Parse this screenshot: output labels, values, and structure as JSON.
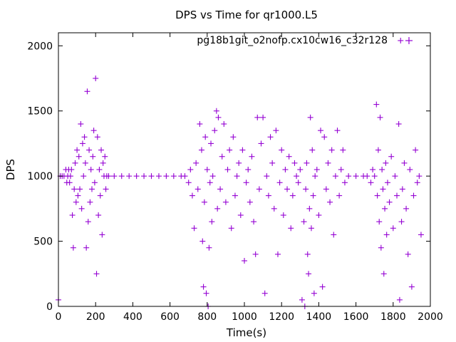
{
  "chart_data": {
    "type": "scatter",
    "title": "DPS vs Time for qr1000.L5",
    "xlabel": "Time(s)",
    "ylabel": "DPS",
    "xlim": [
      0,
      2000
    ],
    "ylim": [
      0,
      2100
    ],
    "xticks": [
      0,
      200,
      400,
      600,
      800,
      1000,
      1200,
      1400,
      1600,
      1800,
      2000
    ],
    "yticks": [
      0,
      500,
      1000,
      1500,
      2000
    ],
    "xtick_labels": [
      "0",
      "200",
      "400",
      "600",
      "800",
      "1000",
      "1200",
      "1400",
      "1600",
      "1800",
      "2000"
    ],
    "ytick_labels": [
      "0",
      "500",
      "1000",
      "1500",
      "2000"
    ],
    "grid": false,
    "legend_position": "top-right",
    "series": [
      {
        "name": "pg18b1git_o2nofp.cx10cw16_c32r128",
        "color": "#9400d3",
        "marker": "plus",
        "points": [
          [
            0,
            50
          ],
          [
            10,
            1000
          ],
          [
            20,
            1000
          ],
          [
            30,
            1000
          ],
          [
            40,
            1050
          ],
          [
            45,
            950
          ],
          [
            50,
            1000
          ],
          [
            55,
            1050
          ],
          [
            60,
            950
          ],
          [
            65,
            1000
          ],
          [
            70,
            1050
          ],
          [
            75,
            700
          ],
          [
            80,
            450
          ],
          [
            85,
            900
          ],
          [
            90,
            1100
          ],
          [
            95,
            800
          ],
          [
            100,
            1200
          ],
          [
            105,
            850
          ],
          [
            110,
            1150
          ],
          [
            115,
            900
          ],
          [
            120,
            1400
          ],
          [
            125,
            750
          ],
          [
            130,
            1250
          ],
          [
            135,
            1000
          ],
          [
            140,
            1300
          ],
          [
            145,
            1100
          ],
          [
            150,
            450
          ],
          [
            155,
            1650
          ],
          [
            160,
            650
          ],
          [
            165,
            1200
          ],
          [
            170,
            800
          ],
          [
            175,
            1050
          ],
          [
            180,
            900
          ],
          [
            185,
            1150
          ],
          [
            190,
            1350
          ],
          [
            195,
            950
          ],
          [
            200,
            1750
          ],
          [
            205,
            250
          ],
          [
            210,
            1300
          ],
          [
            215,
            700
          ],
          [
            220,
            1050
          ],
          [
            225,
            850
          ],
          [
            230,
            1200
          ],
          [
            235,
            550
          ],
          [
            240,
            1100
          ],
          [
            245,
            1000
          ],
          [
            250,
            1150
          ],
          [
            255,
            900
          ],
          [
            260,
            1000
          ],
          [
            270,
            1000
          ],
          [
            300,
            1000
          ],
          [
            340,
            1000
          ],
          [
            380,
            1000
          ],
          [
            420,
            1000
          ],
          [
            460,
            1000
          ],
          [
            500,
            1000
          ],
          [
            540,
            1000
          ],
          [
            580,
            1000
          ],
          [
            620,
            1000
          ],
          [
            660,
            1000
          ],
          [
            680,
            1000
          ],
          [
            700,
            950
          ],
          [
            710,
            1050
          ],
          [
            720,
            850
          ],
          [
            730,
            600
          ],
          [
            740,
            1100
          ],
          [
            750,
            900
          ],
          [
            760,
            1400
          ],
          [
            770,
            1200
          ],
          [
            775,
            500
          ],
          [
            780,
            150
          ],
          [
            785,
            800
          ],
          [
            790,
            1300
          ],
          [
            795,
            100
          ],
          [
            800,
            1050
          ],
          [
            805,
            0
          ],
          [
            810,
            450
          ],
          [
            815,
            950
          ],
          [
            820,
            1250
          ],
          [
            825,
            650
          ],
          [
            830,
            1000
          ],
          [
            840,
            1350
          ],
          [
            850,
            1500
          ],
          [
            855,
            750
          ],
          [
            860,
            1450
          ],
          [
            870,
            900
          ],
          [
            880,
            1150
          ],
          [
            890,
            1400
          ],
          [
            900,
            800
          ],
          [
            910,
            1050
          ],
          [
            920,
            1200
          ],
          [
            930,
            600
          ],
          [
            940,
            1300
          ],
          [
            950,
            850
          ],
          [
            960,
            1000
          ],
          [
            970,
            1100
          ],
          [
            980,
            700
          ],
          [
            990,
            1200
          ],
          [
            1000,
            350
          ],
          [
            1010,
            950
          ],
          [
            1020,
            1050
          ],
          [
            1030,
            800
          ],
          [
            1040,
            1150
          ],
          [
            1050,
            650
          ],
          [
            1060,
            400
          ],
          [
            1070,
            1450
          ],
          [
            1080,
            900
          ],
          [
            1090,
            1250
          ],
          [
            1100,
            1450
          ],
          [
            1110,
            100
          ],
          [
            1120,
            1000
          ],
          [
            1130,
            850
          ],
          [
            1140,
            1300
          ],
          [
            1150,
            1100
          ],
          [
            1160,
            750
          ],
          [
            1170,
            1350
          ],
          [
            1180,
            400
          ],
          [
            1190,
            950
          ],
          [
            1200,
            1200
          ],
          [
            1210,
            700
          ],
          [
            1220,
            1050
          ],
          [
            1230,
            900
          ],
          [
            1240,
            1150
          ],
          [
            1250,
            600
          ],
          [
            1260,
            850
          ],
          [
            1270,
            1100
          ],
          [
            1280,
            1000
          ],
          [
            1290,
            950
          ],
          [
            1300,
            1050
          ],
          [
            1310,
            50
          ],
          [
            1320,
            650
          ],
          [
            1325,
            0
          ],
          [
            1330,
            900
          ],
          [
            1335,
            1100
          ],
          [
            1340,
            400
          ],
          [
            1345,
            250
          ],
          [
            1350,
            750
          ],
          [
            1355,
            1450
          ],
          [
            1360,
            600
          ],
          [
            1365,
            1200
          ],
          [
            1370,
            850
          ],
          [
            1375,
            100
          ],
          [
            1380,
            1000
          ],
          [
            1390,
            1050
          ],
          [
            1400,
            700
          ],
          [
            1410,
            1350
          ],
          [
            1420,
            150
          ],
          [
            1430,
            1300
          ],
          [
            1440,
            900
          ],
          [
            1450,
            1100
          ],
          [
            1460,
            800
          ],
          [
            1470,
            1200
          ],
          [
            1480,
            550
          ],
          [
            1490,
            1000
          ],
          [
            1500,
            1350
          ],
          [
            1510,
            850
          ],
          [
            1520,
            1050
          ],
          [
            1530,
            1200
          ],
          [
            1540,
            950
          ],
          [
            1560,
            1000
          ],
          [
            1600,
            1000
          ],
          [
            1640,
            1000
          ],
          [
            1660,
            1000
          ],
          [
            1680,
            950
          ],
          [
            1690,
            1050
          ],
          [
            1700,
            1000
          ],
          [
            1710,
            1550
          ],
          [
            1715,
            850
          ],
          [
            1720,
            1200
          ],
          [
            1725,
            650
          ],
          [
            1730,
            1450
          ],
          [
            1735,
            450
          ],
          [
            1740,
            1050
          ],
          [
            1745,
            900
          ],
          [
            1750,
            250
          ],
          [
            1755,
            750
          ],
          [
            1760,
            1100
          ],
          [
            1765,
            550
          ],
          [
            1770,
            950
          ],
          [
            1780,
            800
          ],
          [
            1790,
            1150
          ],
          [
            1800,
            600
          ],
          [
            1810,
            1000
          ],
          [
            1820,
            850
          ],
          [
            1830,
            1400
          ],
          [
            1835,
            50
          ],
          [
            1840,
            2040
          ],
          [
            1845,
            650
          ],
          [
            1850,
            900
          ],
          [
            1860,
            1100
          ],
          [
            1870,
            750
          ],
          [
            1880,
            400
          ],
          [
            1890,
            1050
          ],
          [
            1900,
            150
          ],
          [
            1910,
            850
          ],
          [
            1920,
            1200
          ],
          [
            1930,
            950
          ],
          [
            1940,
            1000
          ],
          [
            1950,
            550
          ]
        ]
      }
    ]
  }
}
